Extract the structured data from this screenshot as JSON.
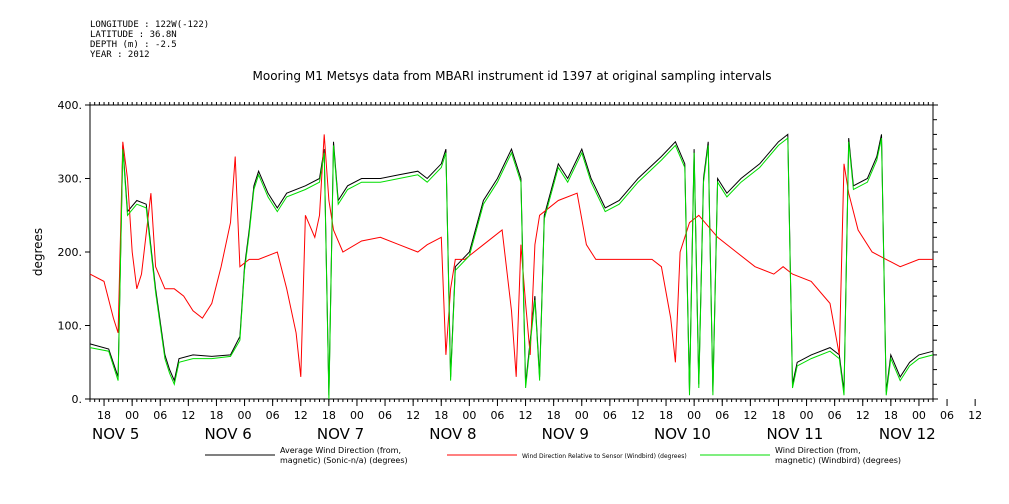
{
  "meta": {
    "longitude": "LONGITUDE : 122W(-122)",
    "latitude": "LATITUDE : 36.8N",
    "depth": "DEPTH (m) : -2.5",
    "year": "YEAR : 2012"
  },
  "chart_data": {
    "type": "line",
    "title": "Mooring M1 Metsys data from MBARI instrument id 1397 at original sampling intervals",
    "ylabel": "degrees",
    "xlabel": "",
    "ylim": [
      0,
      400
    ],
    "xlim_hours": [
      0,
      180
    ],
    "y_ticks": [
      "0.",
      "100.",
      "200.",
      "300.",
      "400."
    ],
    "x_hour_ticks": [
      "18",
      "00",
      "06",
      "12",
      "18",
      "00",
      "06",
      "12",
      "18",
      "00",
      "06",
      "12",
      "18",
      "00",
      "06",
      "12",
      "18",
      "00",
      "06",
      "12",
      "18",
      "00",
      "06",
      "12",
      "18",
      "00",
      "06",
      "12",
      "18",
      "00",
      "06",
      "12"
    ],
    "x_day_labels": [
      "NOV  5",
      "NOV  6",
      "NOV  7",
      "NOV  8",
      "NOV  9",
      "NOV 10",
      "NOV 11",
      "NOV 12"
    ],
    "legend": [
      {
        "line1": "Average Wind Direction (from,",
        "line2": "magnetic) (Sonic-n/a) (degrees)",
        "color": "#000000"
      },
      {
        "line1": "Wind Direction Relative to Sensor (Windbird) (degrees)",
        "line2": "",
        "color": "#ff0000"
      },
      {
        "line1": "Wind Direction (from,",
        "line2": "magnetic) (Windbird) (degrees)",
        "color": "#00dd00"
      }
    ],
    "series": [
      {
        "name": "Average Wind Direction (from, magnetic) (Sonic-n/a) (degrees)",
        "color": "#000000",
        "points": [
          [
            0,
            75
          ],
          [
            4,
            68
          ],
          [
            6,
            30
          ],
          [
            7,
            345
          ],
          [
            8,
            255
          ],
          [
            10,
            270
          ],
          [
            12,
            265
          ],
          [
            14,
            150
          ],
          [
            16,
            60
          ],
          [
            17,
            40
          ],
          [
            18,
            25
          ],
          [
            19,
            55
          ],
          [
            22,
            60
          ],
          [
            26,
            58
          ],
          [
            30,
            60
          ],
          [
            32,
            85
          ],
          [
            33,
            180
          ],
          [
            34,
            230
          ],
          [
            35,
            290
          ],
          [
            36,
            310
          ],
          [
            38,
            280
          ],
          [
            40,
            260
          ],
          [
            42,
            280
          ],
          [
            46,
            290
          ],
          [
            49,
            300
          ],
          [
            50,
            340
          ],
          [
            51,
            5
          ],
          [
            52,
            350
          ],
          [
            53,
            270
          ],
          [
            55,
            290
          ],
          [
            58,
            300
          ],
          [
            62,
            300
          ],
          [
            66,
            305
          ],
          [
            70,
            310
          ],
          [
            72,
            300
          ],
          [
            75,
            320
          ],
          [
            76,
            340
          ],
          [
            77,
            30
          ],
          [
            78,
            180
          ],
          [
            81,
            200
          ],
          [
            84,
            270
          ],
          [
            87,
            300
          ],
          [
            90,
            340
          ],
          [
            92,
            300
          ],
          [
            93,
            20
          ],
          [
            95,
            140
          ],
          [
            96,
            30
          ],
          [
            97,
            250
          ],
          [
            100,
            320
          ],
          [
            102,
            300
          ],
          [
            105,
            340
          ],
          [
            107,
            300
          ],
          [
            110,
            260
          ],
          [
            113,
            270
          ],
          [
            117,
            300
          ],
          [
            122,
            330
          ],
          [
            125,
            350
          ],
          [
            127,
            320
          ],
          [
            128,
            10
          ],
          [
            129,
            340
          ],
          [
            130,
            20
          ],
          [
            131,
            300
          ],
          [
            132,
            350
          ],
          [
            133,
            10
          ],
          [
            134,
            300
          ],
          [
            136,
            280
          ],
          [
            139,
            300
          ],
          [
            143,
            320
          ],
          [
            147,
            350
          ],
          [
            149,
            360
          ],
          [
            150,
            20
          ],
          [
            151,
            50
          ],
          [
            154,
            60
          ],
          [
            158,
            70
          ],
          [
            160,
            60
          ],
          [
            161,
            10
          ],
          [
            162,
            355
          ],
          [
            163,
            290
          ],
          [
            166,
            300
          ],
          [
            168,
            330
          ],
          [
            169,
            360
          ],
          [
            170,
            10
          ],
          [
            171,
            60
          ],
          [
            173,
            30
          ],
          [
            175,
            50
          ],
          [
            177,
            60
          ],
          [
            180,
            65
          ]
        ]
      },
      {
        "name": "Wind Direction Relative to Sensor (Windbird) (degrees)",
        "color": "#ff0000",
        "points": [
          [
            0,
            170
          ],
          [
            3,
            160
          ],
          [
            5,
            110
          ],
          [
            6,
            90
          ],
          [
            7,
            350
          ],
          [
            8,
            300
          ],
          [
            9,
            200
          ],
          [
            10,
            150
          ],
          [
            11,
            170
          ],
          [
            13,
            280
          ],
          [
            14,
            180
          ],
          [
            16,
            150
          ],
          [
            18,
            150
          ],
          [
            20,
            140
          ],
          [
            22,
            120
          ],
          [
            24,
            110
          ],
          [
            26,
            130
          ],
          [
            28,
            180
          ],
          [
            30,
            240
          ],
          [
            31,
            330
          ],
          [
            32,
            180
          ],
          [
            34,
            190
          ],
          [
            36,
            190
          ],
          [
            40,
            200
          ],
          [
            42,
            150
          ],
          [
            44,
            90
          ],
          [
            45,
            30
          ],
          [
            46,
            250
          ],
          [
            48,
            220
          ],
          [
            49,
            250
          ],
          [
            50,
            360
          ],
          [
            51,
            270
          ],
          [
            52,
            230
          ],
          [
            54,
            200
          ],
          [
            58,
            215
          ],
          [
            62,
            220
          ],
          [
            66,
            210
          ],
          [
            70,
            200
          ],
          [
            72,
            210
          ],
          [
            75,
            220
          ],
          [
            76,
            60
          ],
          [
            77,
            150
          ],
          [
            78,
            190
          ],
          [
            80,
            190
          ],
          [
            84,
            210
          ],
          [
            88,
            230
          ],
          [
            90,
            120
          ],
          [
            91,
            30
          ],
          [
            92,
            210
          ],
          [
            93,
            130
          ],
          [
            94,
            60
          ],
          [
            95,
            210
          ],
          [
            96,
            250
          ],
          [
            100,
            270
          ],
          [
            104,
            280
          ],
          [
            106,
            210
          ],
          [
            108,
            190
          ],
          [
            112,
            190
          ],
          [
            116,
            190
          ],
          [
            120,
            190
          ],
          [
            122,
            180
          ],
          [
            124,
            110
          ],
          [
            125,
            50
          ],
          [
            126,
            200
          ],
          [
            128,
            240
          ],
          [
            130,
            250
          ],
          [
            134,
            220
          ],
          [
            138,
            200
          ],
          [
            142,
            180
          ],
          [
            146,
            170
          ],
          [
            148,
            180
          ],
          [
            150,
            170
          ],
          [
            154,
            160
          ],
          [
            158,
            130
          ],
          [
            160,
            60
          ],
          [
            161,
            320
          ],
          [
            162,
            280
          ],
          [
            164,
            230
          ],
          [
            167,
            200
          ],
          [
            170,
            190
          ],
          [
            173,
            180
          ],
          [
            177,
            190
          ],
          [
            180,
            190
          ]
        ]
      },
      {
        "name": "Wind Direction (from, magnetic) (Windbird) (degrees)",
        "color": "#00dd00",
        "points": [
          [
            0,
            70
          ],
          [
            4,
            65
          ],
          [
            6,
            25
          ],
          [
            7,
            340
          ],
          [
            8,
            250
          ],
          [
            10,
            265
          ],
          [
            12,
            260
          ],
          [
            14,
            145
          ],
          [
            16,
            55
          ],
          [
            17,
            35
          ],
          [
            18,
            20
          ],
          [
            19,
            50
          ],
          [
            22,
            55
          ],
          [
            26,
            55
          ],
          [
            30,
            58
          ],
          [
            32,
            80
          ],
          [
            33,
            175
          ],
          [
            34,
            225
          ],
          [
            35,
            285
          ],
          [
            36,
            305
          ],
          [
            38,
            275
          ],
          [
            40,
            255
          ],
          [
            42,
            275
          ],
          [
            46,
            285
          ],
          [
            49,
            295
          ],
          [
            50,
            335
          ],
          [
            51,
            0
          ],
          [
            52,
            345
          ],
          [
            53,
            265
          ],
          [
            55,
            285
          ],
          [
            58,
            295
          ],
          [
            62,
            295
          ],
          [
            66,
            300
          ],
          [
            70,
            305
          ],
          [
            72,
            295
          ],
          [
            75,
            315
          ],
          [
            76,
            335
          ],
          [
            77,
            25
          ],
          [
            78,
            175
          ],
          [
            81,
            195
          ],
          [
            84,
            265
          ],
          [
            87,
            295
          ],
          [
            90,
            335
          ],
          [
            92,
            295
          ],
          [
            93,
            15
          ],
          [
            95,
            135
          ],
          [
            96,
            25
          ],
          [
            97,
            245
          ],
          [
            100,
            315
          ],
          [
            102,
            295
          ],
          [
            105,
            335
          ],
          [
            107,
            295
          ],
          [
            110,
            255
          ],
          [
            113,
            265
          ],
          [
            117,
            295
          ],
          [
            122,
            325
          ],
          [
            125,
            345
          ],
          [
            127,
            315
          ],
          [
            128,
            5
          ],
          [
            129,
            335
          ],
          [
            130,
            15
          ],
          [
            131,
            295
          ],
          [
            132,
            345
          ],
          [
            133,
            5
          ],
          [
            134,
            295
          ],
          [
            136,
            275
          ],
          [
            139,
            295
          ],
          [
            143,
            315
          ],
          [
            147,
            345
          ],
          [
            149,
            355
          ],
          [
            150,
            15
          ],
          [
            151,
            45
          ],
          [
            154,
            55
          ],
          [
            158,
            65
          ],
          [
            160,
            55
          ],
          [
            161,
            5
          ],
          [
            162,
            350
          ],
          [
            163,
            285
          ],
          [
            166,
            295
          ],
          [
            168,
            325
          ],
          [
            169,
            355
          ],
          [
            170,
            5
          ],
          [
            171,
            55
          ],
          [
            173,
            25
          ],
          [
            175,
            45
          ],
          [
            177,
            55
          ],
          [
            180,
            60
          ]
        ]
      }
    ]
  }
}
